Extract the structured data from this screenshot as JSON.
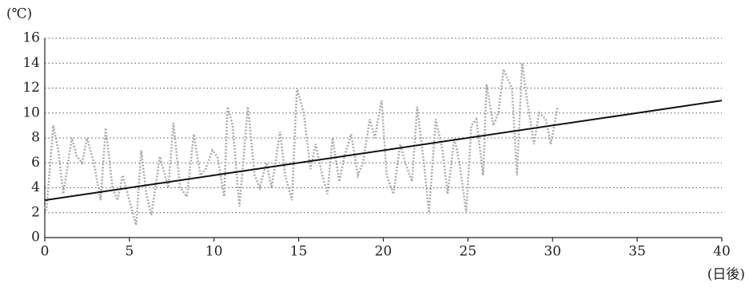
{
  "chart_data": {
    "type": "line",
    "y_label": "(℃)",
    "x_label": "(日後)",
    "xlim": [
      0,
      40
    ],
    "xticks": [
      0,
      5,
      10,
      15,
      20,
      25,
      30,
      35,
      40
    ],
    "ylim": [
      0,
      16
    ],
    "yticks": [
      0,
      2,
      4,
      6,
      8,
      10,
      12,
      14,
      16
    ],
    "grid": true,
    "series": [
      {
        "color": "#aaaaaa",
        "style": "dotted",
        "x": [
          0,
          0.1,
          0.5,
          0.8,
          1.1,
          1.6,
          1.9,
          2.2,
          2.5,
          2.9,
          3.3,
          3.6,
          4.0,
          4.3,
          4.6,
          4.9,
          5.4,
          5.7,
          6.0,
          6.3,
          6.8,
          7.3,
          7.6,
          8.0,
          8.4,
          8.8,
          9.2,
          9.5,
          9.9,
          10.2,
          10.6,
          10.8,
          11.1,
          11.5,
          12.0,
          12.4,
          12.7,
          13.1,
          13.4,
          13.9,
          14.2,
          14.6,
          14.9,
          15.3,
          15.7,
          16.0,
          16.4,
          16.7,
          17.0,
          17.4,
          17.7,
          18.1,
          18.5,
          18.8,
          19.2,
          19.5,
          19.9,
          20.2,
          20.6,
          21.0,
          21.3,
          21.7,
          22.0,
          22.4,
          22.7,
          23.1,
          23.5,
          23.8,
          24.2,
          24.5,
          24.9,
          25.2,
          25.5,
          25.9,
          26.1,
          26.5,
          26.8,
          27.1,
          27.6,
          27.9,
          28.2,
          28.5,
          28.9,
          29.2,
          29.6,
          29.9,
          30.3
        ],
        "values": [
          2.5,
          2.2,
          9,
          7,
          3.5,
          8,
          6.5,
          6,
          8,
          6,
          3,
          8.8,
          4,
          3,
          5,
          3.5,
          1,
          7,
          3.5,
          1.8,
          6.5,
          4,
          9.2,
          4,
          3.3,
          8.3,
          5,
          5.5,
          7,
          6.5,
          3.3,
          10.5,
          9,
          2.5,
          10.5,
          5,
          4,
          6,
          4,
          8.5,
          5,
          3,
          12,
          10,
          5.5,
          7.5,
          5,
          3.5,
          8,
          4.5,
          6.5,
          8.3,
          5,
          6,
          9.5,
          8,
          11,
          5,
          3.5,
          7.5,
          6,
          4.5,
          10.5,
          6,
          2,
          9.5,
          7,
          3.5,
          8,
          6,
          2,
          9,
          9.5,
          5,
          12.3,
          9,
          10,
          13.5,
          12,
          5,
          14,
          11,
          7.5,
          10,
          9.5,
          7.5,
          10.5
        ]
      },
      {
        "color": "#111111",
        "style": "solid",
        "x": [
          0,
          40
        ],
        "values": [
          3,
          11
        ]
      }
    ]
  }
}
